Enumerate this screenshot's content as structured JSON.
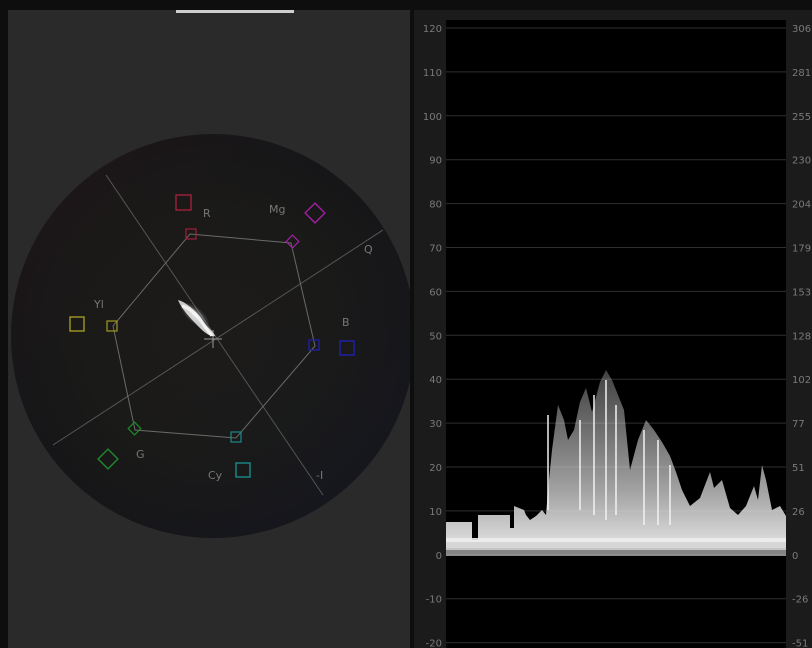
{
  "vectorscope": {
    "labels": {
      "r": "R",
      "mg": "Mg",
      "q": "Q",
      "yl": "Yl",
      "b": "B",
      "g": "G",
      "cy": "Cy",
      "minus_i": "-I"
    },
    "colors": {
      "r": "#a0203a",
      "mg": "#a020a0",
      "b": "#2020b0",
      "cy": "#1a8a8a",
      "g": "#20882a",
      "yl": "#a09a20"
    }
  },
  "waveform": {
    "left_scale": [
      "120",
      "110",
      "100",
      "90",
      "80",
      "70",
      "60",
      "50",
      "40",
      "30",
      "20",
      "10",
      "0",
      "-10",
      "-20"
    ],
    "right_scale": [
      "306",
      "281",
      "255",
      "230",
      "204",
      "179",
      "153",
      "128",
      "102",
      "77",
      "51",
      "26",
      "0",
      "-26",
      "-51"
    ]
  }
}
